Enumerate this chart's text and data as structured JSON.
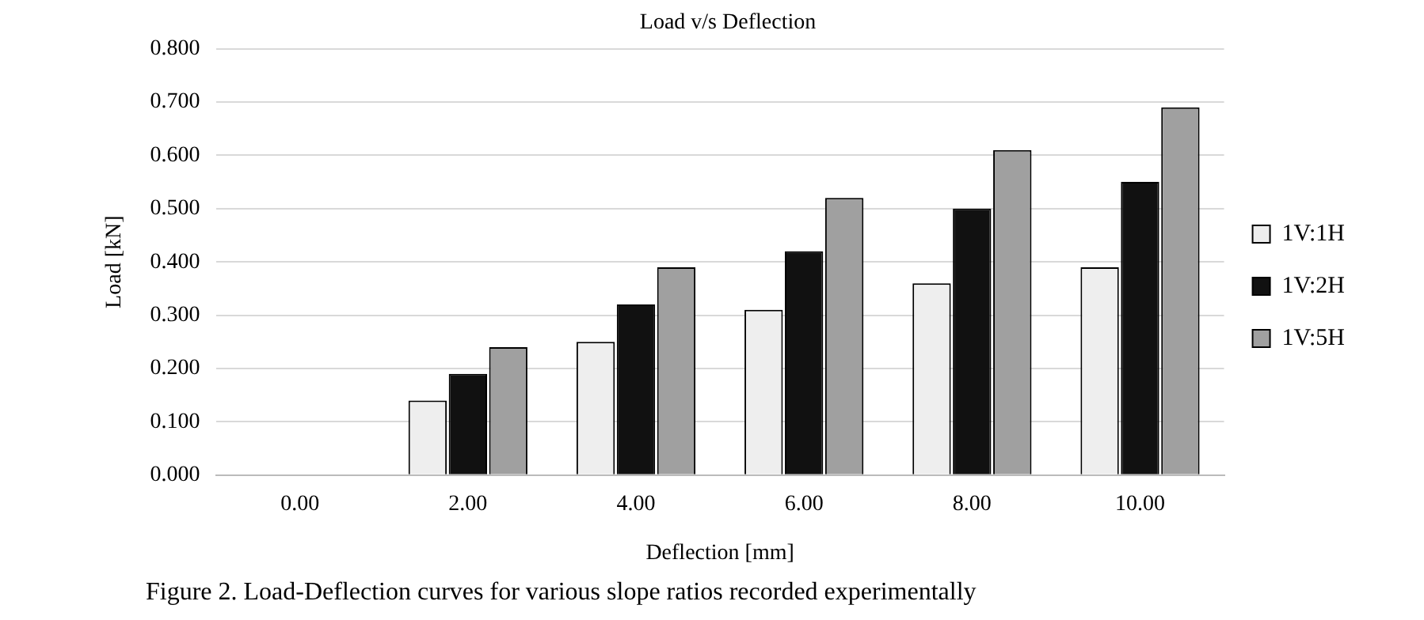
{
  "chart_data": {
    "type": "bar",
    "title": "Load v/s Deflection",
    "xlabel": "Deflection [mm]",
    "ylabel": "Load [kN]",
    "categories": [
      "0.00",
      "2.00",
      "4.00",
      "6.00",
      "8.00",
      "10.00"
    ],
    "series": [
      {
        "name": "1V:1H",
        "color": "#eeeeee",
        "values": [
          0,
          0.14,
          0.25,
          0.31,
          0.36,
          0.39
        ]
      },
      {
        "name": "1V:2H",
        "color": "#111111",
        "values": [
          0,
          0.19,
          0.32,
          0.42,
          0.5,
          0.55
        ]
      },
      {
        "name": "1V:5H",
        "color": "#a0a0a0",
        "values": [
          0,
          0.24,
          0.39,
          0.52,
          0.61,
          0.69
        ]
      }
    ],
    "ylim": [
      0,
      0.8
    ],
    "yticks": [
      {
        "value": 0,
        "label": "0.000"
      },
      {
        "value": 0.1,
        "label": "0.100"
      },
      {
        "value": 0.2,
        "label": "0.200"
      },
      {
        "value": 0.3,
        "label": "0.300"
      },
      {
        "value": 0.4,
        "label": "0.400"
      },
      {
        "value": 0.5,
        "label": "0.500"
      },
      {
        "value": 0.6,
        "label": "0.600"
      },
      {
        "value": 0.7,
        "label": "0.700"
      },
      {
        "value": 0.8,
        "label": "0.800"
      }
    ],
    "grid": "y",
    "legend": "right",
    "annotations": [
      "Figure 2. Load-Deflection curves for various slope ratios recorded experimentally"
    ]
  }
}
